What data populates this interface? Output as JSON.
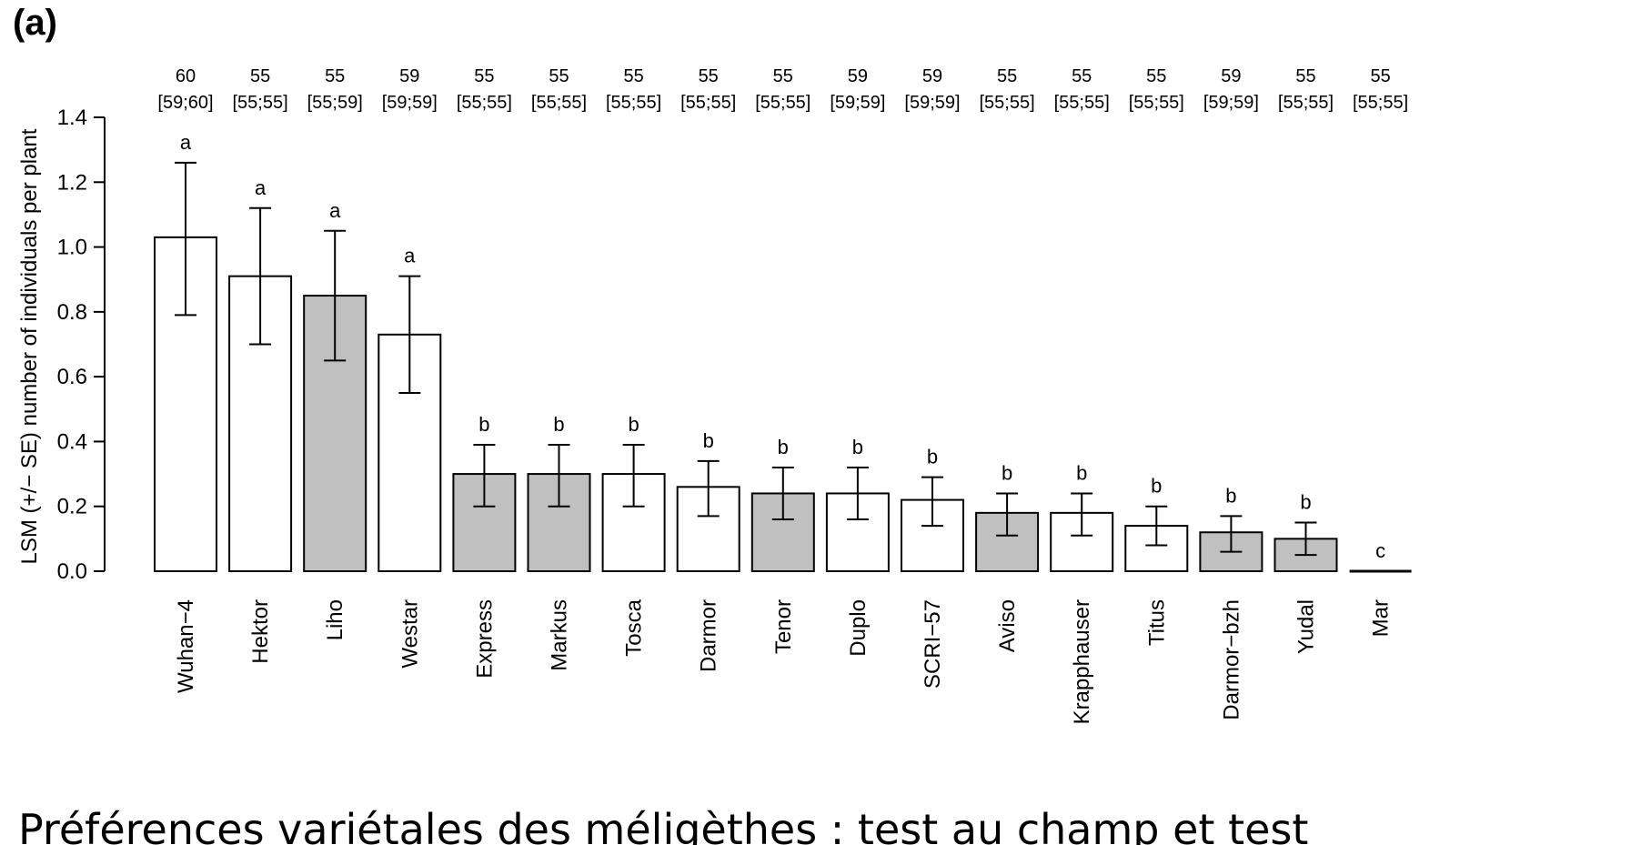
{
  "panel_label": "(a)",
  "caption": "Préférences variétales des méligèthes : test au champ et test",
  "chart_data": {
    "type": "bar",
    "ylabel": "LSM (+/− SE) number of individuals per plant",
    "ylim": [
      0,
      1.4
    ],
    "yticks": [
      "0.0",
      "0.2",
      "0.4",
      "0.6",
      "0.8",
      "1.0",
      "1.2",
      "1.4"
    ],
    "categories": [
      "Wuhan−4",
      "Hektor",
      "Liho",
      "Westar",
      "Express",
      "Markus",
      "Tosca",
      "Darmor",
      "Tenor",
      "Duplo",
      "SCRI−57",
      "Aviso",
      "Krapphauser",
      "Titus",
      "Darmor−bzh",
      "Yudal",
      "Mar"
    ],
    "values": [
      1.03,
      0.91,
      0.85,
      0.73,
      0.3,
      0.3,
      0.3,
      0.26,
      0.24,
      0.24,
      0.22,
      0.18,
      0.18,
      0.14,
      0.12,
      0.1,
      0.0
    ],
    "se_low": [
      0.79,
      0.7,
      0.65,
      0.55,
      0.2,
      0.2,
      0.2,
      0.17,
      0.16,
      0.16,
      0.14,
      0.11,
      0.11,
      0.08,
      0.06,
      0.05,
      null
    ],
    "se_high": [
      1.26,
      1.12,
      1.05,
      0.91,
      0.39,
      0.39,
      0.39,
      0.34,
      0.32,
      0.32,
      0.29,
      0.24,
      0.24,
      0.2,
      0.17,
      0.15,
      null
    ],
    "shaded": [
      false,
      false,
      true,
      false,
      true,
      true,
      false,
      false,
      true,
      false,
      false,
      true,
      false,
      false,
      true,
      true,
      false
    ],
    "letters": [
      "a",
      "a",
      "a",
      "a",
      "b",
      "b",
      "b",
      "b",
      "b",
      "b",
      "b",
      "b",
      "b",
      "b",
      "b",
      "b",
      "c"
    ],
    "n": [
      "60",
      "55",
      "55",
      "59",
      "55",
      "55",
      "55",
      "55",
      "55",
      "59",
      "59",
      "55",
      "55",
      "55",
      "59",
      "55",
      "55"
    ],
    "n_range": [
      "[59;60]",
      "[55;55]",
      "[55;59]",
      "[59;59]",
      "[55;55]",
      "[55;55]",
      "[55;55]",
      "[55;55]",
      "[55;55]",
      "[59;59]",
      "[59;59]",
      "[55;55]",
      "[55;55]",
      "[55;55]",
      "[59;59]",
      "[55;55]",
      "[55;55]"
    ],
    "colors": {
      "shaded": "#c0c0c0",
      "unshaded": "#ffffff",
      "stroke": "#000000"
    },
    "grid": false,
    "legend": "none"
  }
}
